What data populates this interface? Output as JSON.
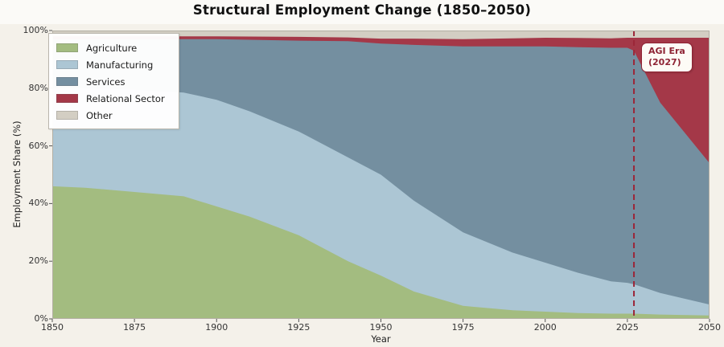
{
  "title": "Structural Employment Change (1850–2050)",
  "colors": {
    "background": "#f4f1ea",
    "title_strip": "#fbfaf7",
    "plot_frame": "#b3afa4",
    "annotation_line": "#9c2638",
    "annotation_text": "#8f2435",
    "tick_text": "#333333"
  },
  "chart_data": {
    "type": "area",
    "stacked": true,
    "title": "Structural Employment Change (1850–2050)",
    "xlabel": "Year",
    "ylabel": "Employment Share (%)",
    "xlim": [
      1850,
      2050
    ],
    "ylim": [
      0,
      100
    ],
    "grid": false,
    "legend_position": "upper left",
    "x_ticks": [
      "1850",
      "1875",
      "1900",
      "1925",
      "1950",
      "1975",
      "2000",
      "2025",
      "2050"
    ],
    "y_ticks": [
      "0%",
      "20%",
      "40%",
      "60%",
      "80%",
      "100%"
    ],
    "x": [
      1850,
      1860,
      1875,
      1890,
      1900,
      1910,
      1925,
      1940,
      1950,
      1960,
      1975,
      1990,
      2000,
      2010,
      2020,
      2025,
      2027,
      2035,
      2050
    ],
    "series": [
      {
        "name": "Agriculture",
        "color": "#a3bc80",
        "values": [
          46,
          45.5,
          44,
          42.5,
          39,
          35.5,
          29,
          20,
          15,
          9.5,
          4.5,
          3,
          2.5,
          2,
          1.8,
          1.8,
          1.8,
          1.5,
          1.2
        ]
      },
      {
        "name": "Manufacturing",
        "color": "#acc6d4",
        "values": [
          34,
          34.5,
          35.5,
          36,
          37,
          36.5,
          36,
          36,
          35,
          31.5,
          25.5,
          20,
          17,
          14,
          11.2,
          10.7,
          10.2,
          7.5,
          3.8
        ]
      },
      {
        "name": "Services",
        "color": "#748fa0",
        "values": [
          17,
          17,
          17.5,
          18.5,
          21,
          24.8,
          31.5,
          40.3,
          45.5,
          54,
          64.5,
          71.5,
          75,
          78.2,
          81,
          81.5,
          81,
          66,
          49
        ]
      },
      {
        "name": "Relational Sector",
        "color": "#a43848",
        "values": [
          1,
          1,
          1,
          1,
          1,
          1.1,
          1.3,
          1.3,
          1.7,
          2.2,
          2.5,
          2.8,
          3,
          3.2,
          3.3,
          3.5,
          4.5,
          22.5,
          43.5
        ]
      },
      {
        "name": "Other",
        "color": "#d3cec3",
        "values": [
          2,
          2,
          2,
          2,
          2,
          2.1,
          2.2,
          2.4,
          2.8,
          2.8,
          3,
          2.7,
          2.5,
          2.6,
          2.7,
          2.5,
          2.5,
          2.5,
          2.5
        ]
      }
    ],
    "annotation": {
      "line1": "AGI Era",
      "line2": "(2027)",
      "x": 2027,
      "line_style": "dashed"
    }
  }
}
